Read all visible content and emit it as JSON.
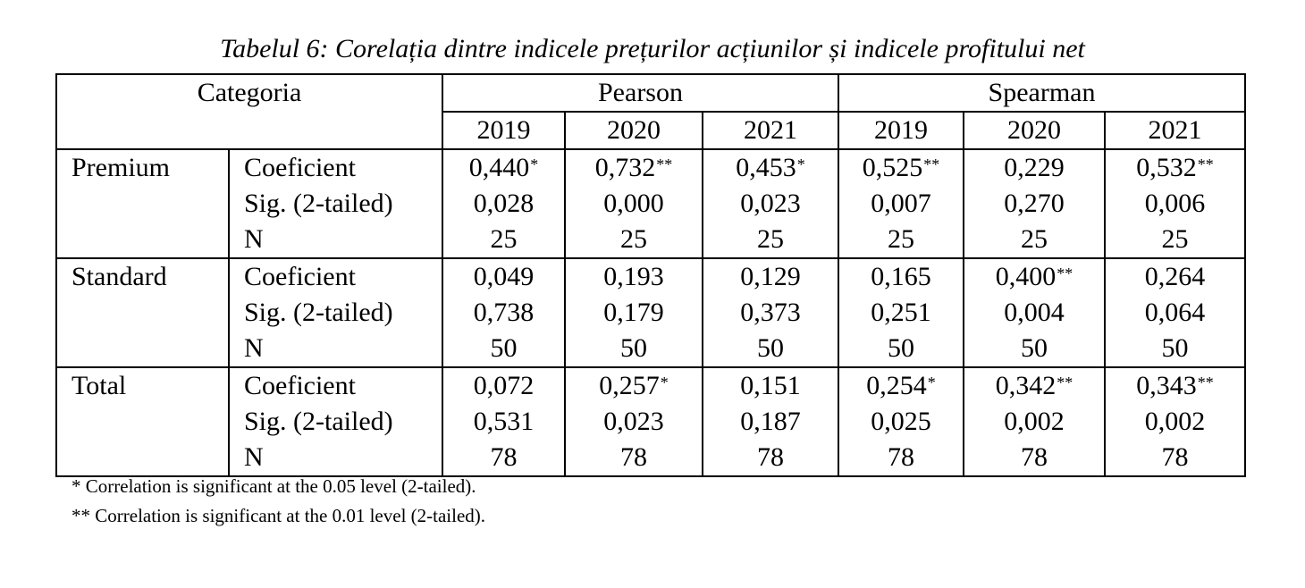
{
  "caption": "Tabelul 6: Corelația dintre indicele prețurilor acțiunilor și indicele profitului net",
  "header": {
    "category": "Categoria",
    "pearson": "Pearson",
    "spearman": "Spearman",
    "years": [
      "2019",
      "2020",
      "2021",
      "2019",
      "2020",
      "2021"
    ]
  },
  "stats": [
    "Coeficient",
    "Sig. (2-tailed)",
    "N"
  ],
  "groups": [
    {
      "name": "Premium",
      "cols": [
        {
          "coef": "0,440",
          "mark": "*",
          "sig": "0,028",
          "n": "25"
        },
        {
          "coef": "0,732",
          "mark": "**",
          "sig": "0,000",
          "n": "25"
        },
        {
          "coef": "0,453",
          "mark": "*",
          "sig": "0,023",
          "n": "25"
        },
        {
          "coef": "0,525",
          "mark": "**",
          "sig": "0,007",
          "n": "25"
        },
        {
          "coef": "0,229",
          "mark": "",
          "sig": "0,270",
          "n": "25"
        },
        {
          "coef": "0,532",
          "mark": "**",
          "sig": "0,006",
          "n": "25"
        }
      ]
    },
    {
      "name": "Standard",
      "cols": [
        {
          "coef": "0,049",
          "mark": "",
          "sig": "0,738",
          "n": "50"
        },
        {
          "coef": "0,193",
          "mark": "",
          "sig": "0,179",
          "n": "50"
        },
        {
          "coef": "0,129",
          "mark": "",
          "sig": "0,373",
          "n": "50"
        },
        {
          "coef": "0,165",
          "mark": "",
          "sig": "0,251",
          "n": "50"
        },
        {
          "coef": "0,400",
          "mark": "**",
          "sig": "0,004",
          "n": "50"
        },
        {
          "coef": "0,264",
          "mark": "",
          "sig": "0,064",
          "n": "50"
        }
      ]
    },
    {
      "name": "Total",
      "cols": [
        {
          "coef": "0,072",
          "mark": "",
          "sig": "0,531",
          "n": "78"
        },
        {
          "coef": "0,257",
          "mark": "*",
          "sig": "0,023",
          "n": "78"
        },
        {
          "coef": "0,151",
          "mark": "",
          "sig": "0,187",
          "n": "78"
        },
        {
          "coef": "0,254",
          "mark": "*",
          "sig": "0,025",
          "n": "78"
        },
        {
          "coef": "0,342",
          "mark": "**",
          "sig": "0,002",
          "n": "78"
        },
        {
          "coef": "0,343",
          "mark": "**",
          "sig": "0,002",
          "n": "78"
        }
      ]
    }
  ],
  "notes": [
    "* Correlation is significant at the 0.05 level (2-tailed).",
    "** Correlation is significant at the 0.01 level (2-tailed)."
  ]
}
